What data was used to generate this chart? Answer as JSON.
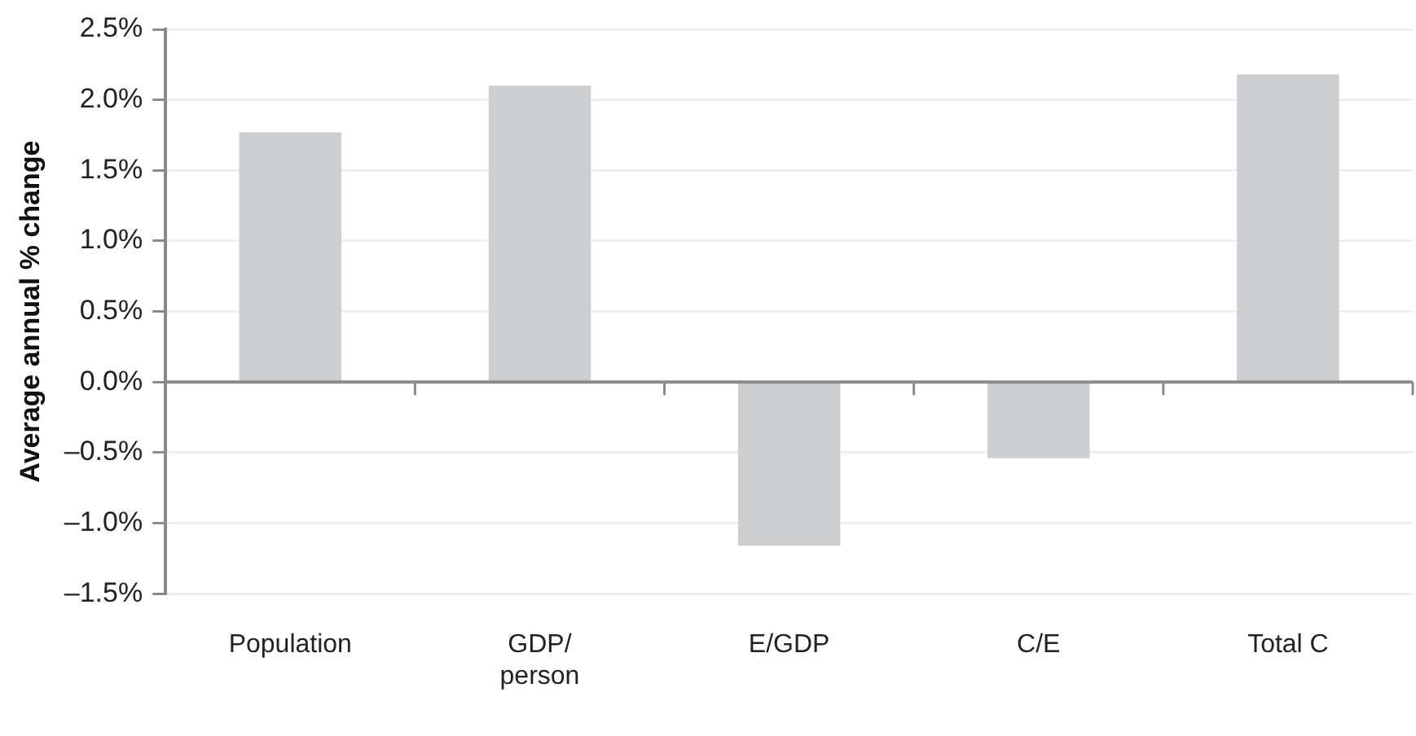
{
  "chart_data": {
    "type": "bar",
    "ylabel": "Average annual % change",
    "categories": [
      "Population",
      "GDP/ person",
      "E/GDP",
      "C/E",
      "Total C"
    ],
    "values": [
      1.77,
      2.1,
      -1.16,
      -0.54,
      2.18
    ],
    "color": "#cdcecf",
    "ylim": [
      -1.5,
      2.5
    ],
    "yticks": [
      {
        "value": -1.5,
        "label": "–1.5%"
      },
      {
        "value": -1,
        "label": "–1.0%"
      },
      {
        "value": -0.5,
        "label": "–0.5%"
      },
      {
        "value": 0,
        "label": "0.0%"
      },
      {
        "value": 0.5,
        "label": "0.5%"
      },
      {
        "value": 1,
        "label": "1.0%"
      },
      {
        "value": 1.5,
        "label": "1.5%"
      },
      {
        "value": 2,
        "label": "2.0%"
      },
      {
        "value": 2.5,
        "label": "2.5%"
      }
    ],
    "grid": "y"
  }
}
